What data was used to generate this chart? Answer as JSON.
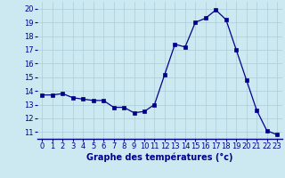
{
  "hours": [
    0,
    1,
    2,
    3,
    4,
    5,
    6,
    7,
    8,
    9,
    10,
    11,
    12,
    13,
    14,
    15,
    16,
    17,
    18,
    19,
    20,
    21,
    22,
    23
  ],
  "temperatures": [
    13.7,
    13.7,
    13.8,
    13.5,
    13.4,
    13.3,
    13.3,
    12.8,
    12.8,
    12.4,
    12.5,
    13.0,
    15.2,
    17.4,
    17.2,
    19.0,
    19.3,
    19.9,
    19.2,
    17.0,
    14.8,
    12.6,
    11.1,
    10.8
  ],
  "line_color": "#00008b",
  "marker": "s",
  "marker_size": 2.5,
  "bg_color": "#cce8f0",
  "grid_color": "#aaccd8",
  "xlabel": "Graphe des températures (°c)",
  "xlabel_color": "#00008b",
  "xlabel_fontsize": 7,
  "tick_color": "#00008b",
  "tick_fontsize": 6,
  "ylim": [
    10.5,
    20.5
  ],
  "xlim": [
    -0.5,
    23.5
  ],
  "yticks": [
    11,
    12,
    13,
    14,
    15,
    16,
    17,
    18,
    19,
    20
  ],
  "xticks": [
    0,
    1,
    2,
    3,
    4,
    5,
    6,
    7,
    8,
    9,
    10,
    11,
    12,
    13,
    14,
    15,
    16,
    17,
    18,
    19,
    20,
    21,
    22,
    23
  ]
}
